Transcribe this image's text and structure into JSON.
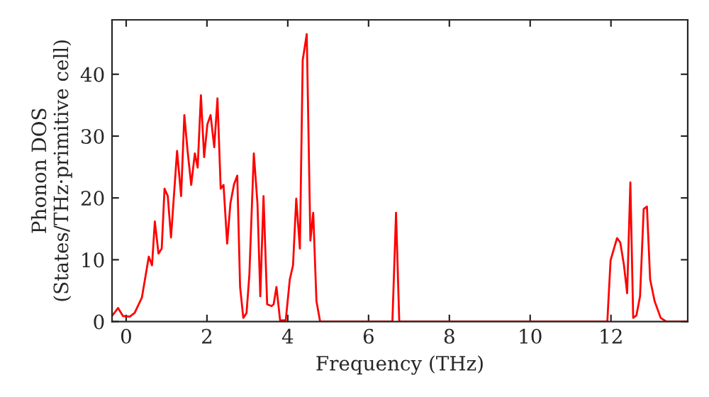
{
  "chart_data": {
    "type": "line",
    "xlabel": "Frequency (THz)",
    "ylabel": "Phonon DOS\n(States/THz·primitive cell)",
    "x": [
      -0.35,
      -0.2,
      -0.08,
      0.09,
      0.21,
      0.39,
      0.56,
      0.64,
      0.71,
      0.8,
      0.88,
      0.95,
      1.03,
      1.11,
      1.26,
      1.36,
      1.44,
      1.52,
      1.61,
      1.7,
      1.77,
      1.85,
      1.93,
      2.01,
      2.09,
      2.18,
      2.26,
      2.34,
      2.41,
      2.5,
      2.58,
      2.67,
      2.75,
      2.82,
      2.9,
      2.98,
      3.05,
      3.16,
      3.25,
      3.32,
      3.4,
      3.49,
      3.6,
      3.65,
      3.72,
      3.81,
      3.95,
      4.05,
      4.13,
      4.21,
      4.3,
      4.37,
      4.47,
      4.56,
      4.63,
      4.71,
      4.8,
      6.59,
      6.68,
      6.76,
      11.91,
      11.99,
      12.15,
      12.23,
      12.32,
      12.4,
      12.48,
      12.55,
      12.63,
      12.72,
      12.81,
      12.89,
      12.97,
      13.08,
      13.23,
      13.37,
      13.9
    ],
    "series": [
      {
        "color": "#ff0000",
        "values": [
          0.9,
          2.2,
          0.9,
          0.8,
          1.4,
          3.9,
          10.5,
          9.1,
          16.2,
          11,
          11.8,
          21.5,
          20.3,
          13.6,
          27.6,
          20.3,
          33.4,
          27.6,
          22.1,
          27.2,
          24.9,
          36.6,
          26.6,
          31.9,
          33.4,
          28.2,
          36.1,
          21.5,
          22.1,
          12.6,
          19.1,
          22.2,
          23.6,
          5.6,
          0.6,
          1.4,
          7.6,
          27.2,
          19.1,
          4.1,
          20.3,
          2.8,
          2.5,
          2.8,
          5.6,
          0.2,
          0.2,
          6.8,
          9.1,
          19.9,
          11.8,
          42.3,
          46.5,
          13.1,
          17.6,
          3.3,
          0,
          0,
          17.6,
          0,
          0,
          9.9,
          13.5,
          12.8,
          9.2,
          4.6,
          22.5,
          0.6,
          1.0,
          4.1,
          18.2,
          18.6,
          6.8,
          3.3,
          0.6,
          0,
          0
        ]
      }
    ],
    "xlim": [
      -0.35,
      13.9
    ],
    "ylim": [
      0,
      48.8
    ],
    "xticks": [
      0,
      2,
      4,
      6,
      8,
      10,
      12
    ],
    "yticks": [
      0,
      10,
      20,
      30,
      40
    ],
    "grid": false,
    "legend": false
  }
}
